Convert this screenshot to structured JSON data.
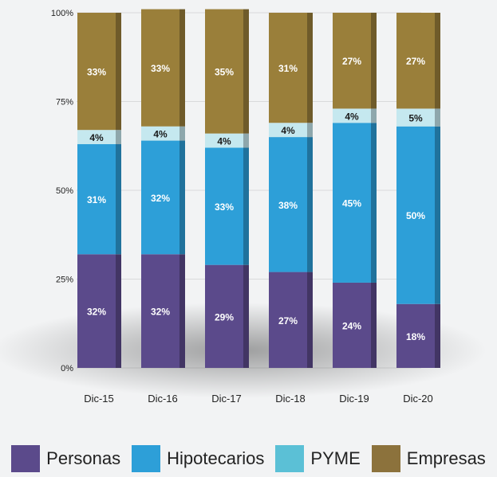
{
  "chart_data": {
    "type": "bar",
    "stacked": true,
    "categories": [
      "Dic-15",
      "Dic-16",
      "Dic-17",
      "Dic-18",
      "Dic-19",
      "Dic-20"
    ],
    "y_ticks": [
      "0%",
      "25%",
      "50%",
      "75%",
      "100%"
    ],
    "ylim": [
      0,
      100
    ],
    "series": [
      {
        "name": "Personas",
        "color": "#5b4a8b",
        "values": [
          32,
          32,
          29,
          27,
          24,
          18
        ]
      },
      {
        "name": "Hipotecarios",
        "color": "#2d9fd8",
        "values": [
          31,
          32,
          33,
          38,
          45,
          50
        ]
      },
      {
        "name": "PYME",
        "color": "#c5e8ef",
        "values": [
          4,
          4,
          4,
          4,
          4,
          5
        ]
      },
      {
        "name": "Empresas",
        "color": "#9a7f3a",
        "values": [
          33,
          33,
          35,
          31,
          27,
          27
        ]
      }
    ],
    "legend_position": "bottom"
  },
  "legend": [
    {
      "label": "Personas",
      "color": "#5b4a8b"
    },
    {
      "label": "Hipotecarios",
      "color": "#2d9fd8"
    },
    {
      "label": "PYME",
      "color": "#5bc0d6"
    },
    {
      "label": "Empresas",
      "color": "#8c723c"
    }
  ]
}
